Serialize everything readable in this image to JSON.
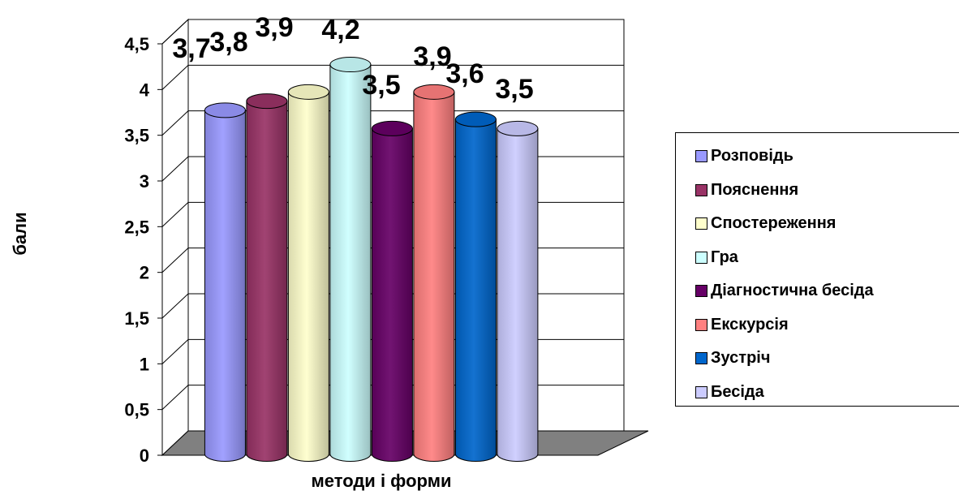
{
  "chart_data": {
    "type": "bar",
    "style": "3d-cylinder",
    "xlabel": "методи і форми",
    "ylabel": "бали",
    "ylim": [
      0,
      4.5
    ],
    "yticks": [
      "0",
      "0,5",
      "1",
      "1,5",
      "2",
      "2,5",
      "3",
      "3,5",
      "4",
      "4,5"
    ],
    "grid": true,
    "legend_position": "right",
    "series": [
      {
        "name": "Розповідь",
        "value": 3.7,
        "label": "3,7",
        "color": "#9999ff"
      },
      {
        "name": "Пояснення",
        "value": 3.8,
        "label": "3,8",
        "color": "#993366"
      },
      {
        "name": "Спостереження",
        "value": 3.9,
        "label": "3,9",
        "color": "#ffffcc"
      },
      {
        "name": "Гра",
        "value": 4.2,
        "label": "4,2",
        "color": "#ccffff"
      },
      {
        "name": "Діагностична бесіда",
        "value": 3.5,
        "label": "3,5",
        "color": "#660066"
      },
      {
        "name": "Екскурсія",
        "value": 3.9,
        "label": "3,9",
        "color": "#ff8080"
      },
      {
        "name": "Зустріч",
        "value": 3.6,
        "label": "3,6",
        "color": "#0066cc"
      },
      {
        "name": "Бесіда",
        "value": 3.5,
        "label": "3,5",
        "color": "#ccccff"
      }
    ]
  }
}
